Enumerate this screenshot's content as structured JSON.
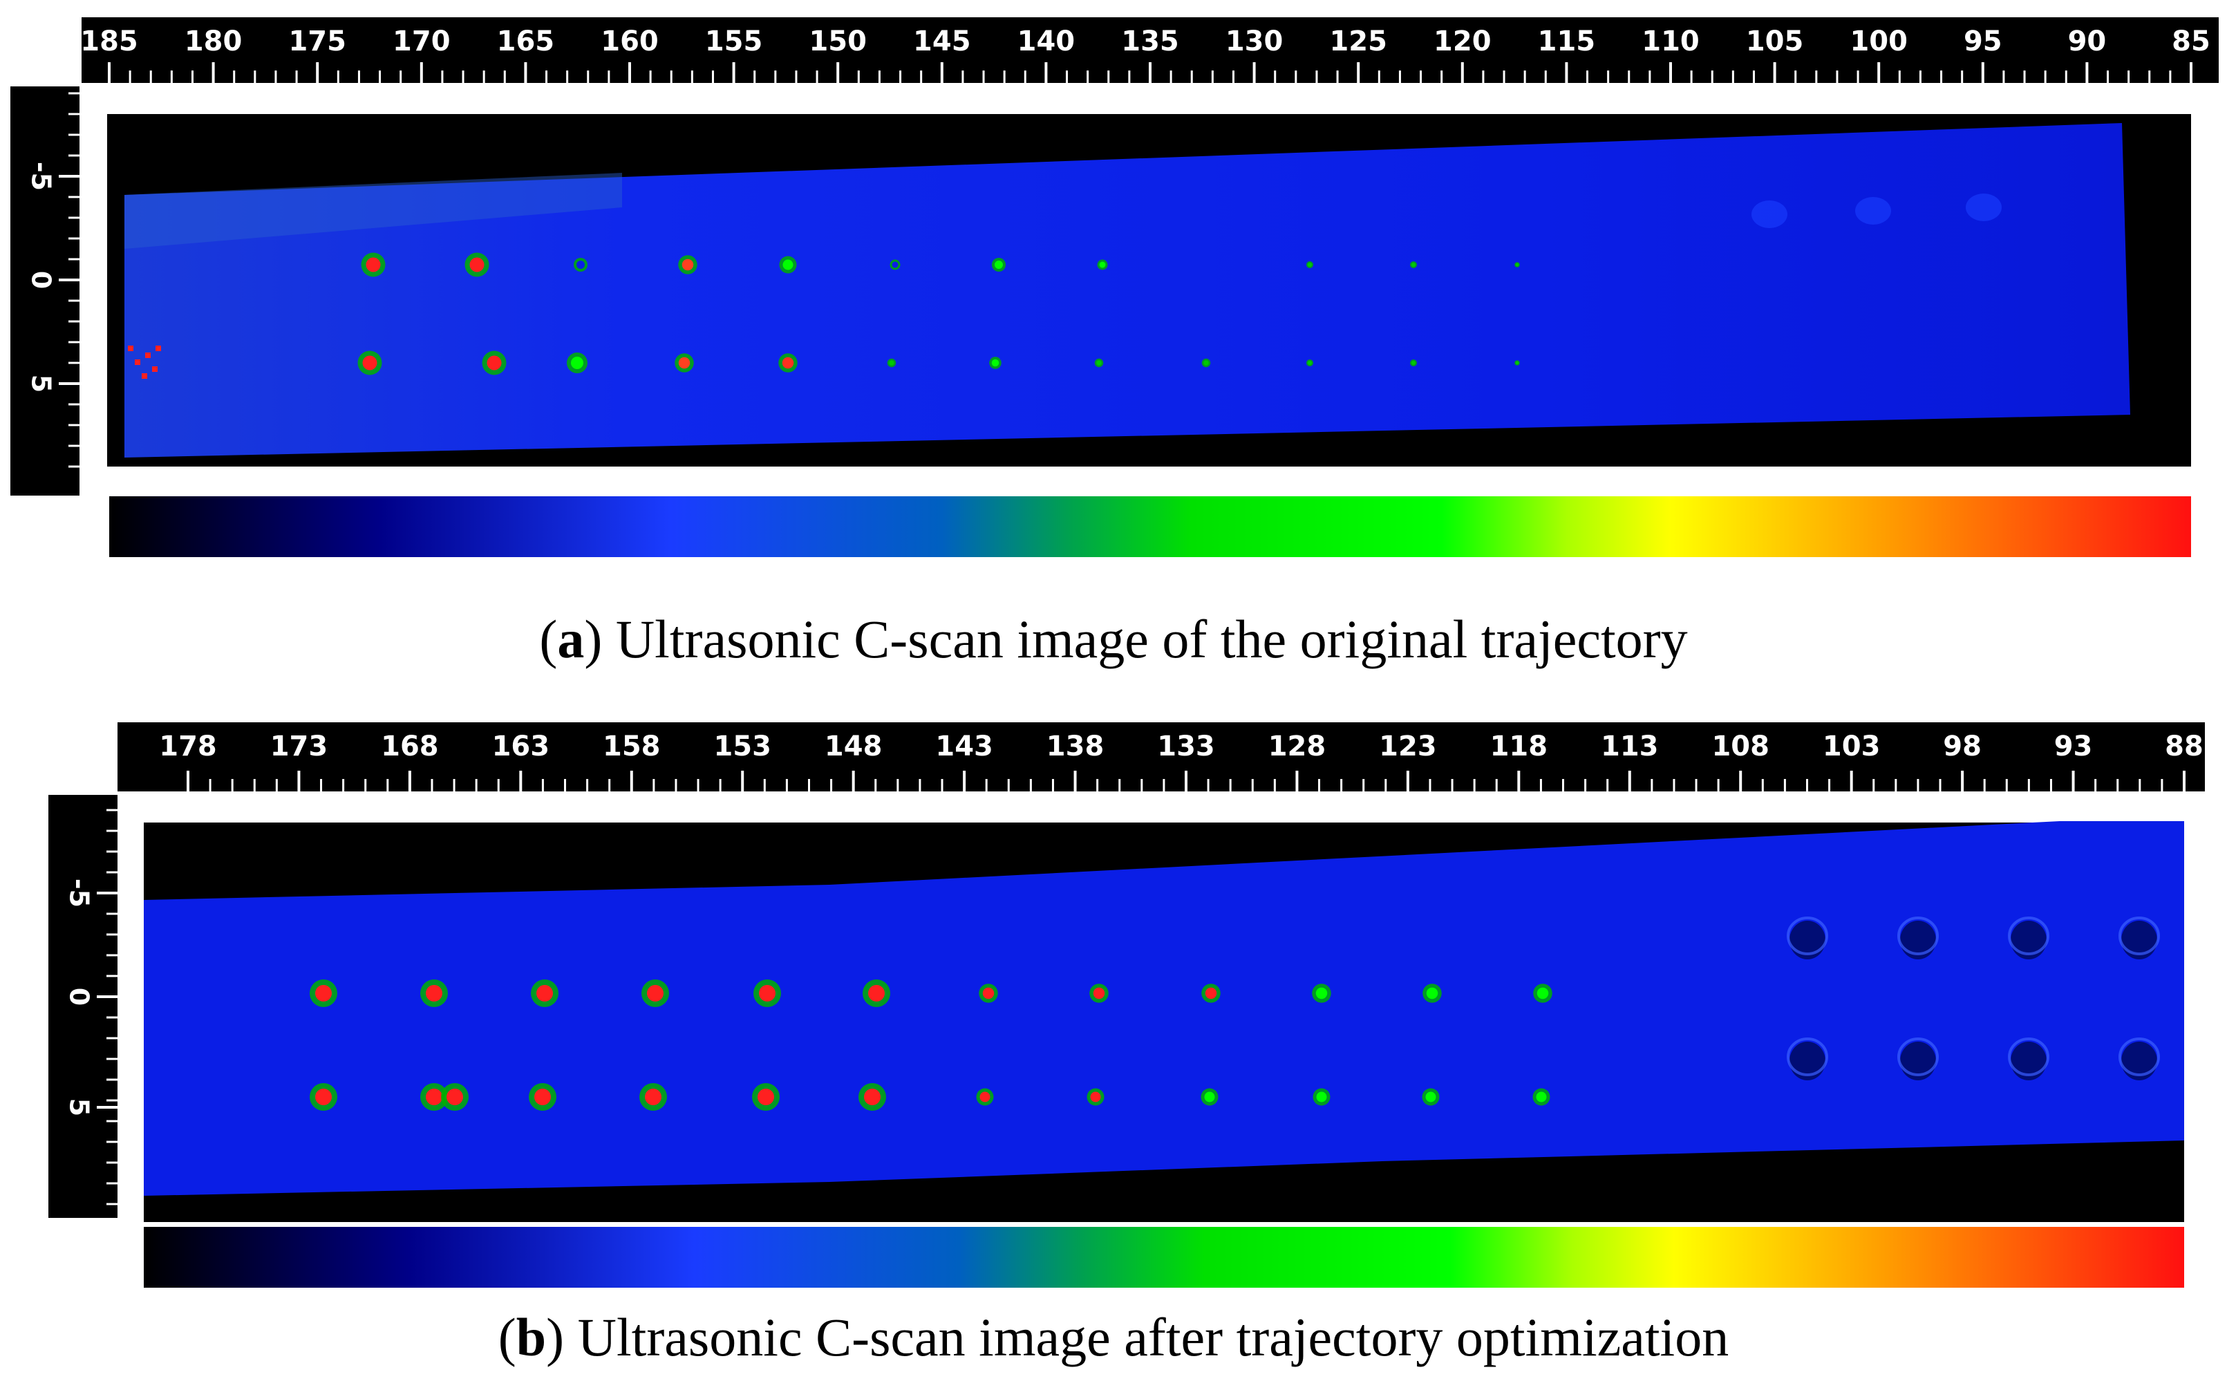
{
  "figure": {
    "panels": [
      {
        "id": "a",
        "caption_letter": "a",
        "caption_text": "Ultrasonic C-scan image of the original trajectory",
        "x_ticks": [
          "185",
          "180",
          "175",
          "170",
          "165",
          "160",
          "155",
          "150",
          "145",
          "140",
          "135",
          "130",
          "125",
          "120",
          "115",
          "110",
          "105",
          "100",
          "95",
          "90",
          "85"
        ],
        "y_ticks": [
          "-5",
          "0",
          "5"
        ]
      },
      {
        "id": "b",
        "caption_letter": "b",
        "caption_text": "Ultrasonic C-scan image after trajectory optimization",
        "x_ticks": [
          "178",
          "173",
          "168",
          "163",
          "158",
          "153",
          "148",
          "143",
          "138",
          "133",
          "128",
          "123",
          "118",
          "113",
          "108",
          "103",
          "98",
          "93",
          "88"
        ],
        "y_ticks": [
          "-5",
          "0",
          "5"
        ]
      }
    ],
    "colors": {
      "background": "#000000",
      "scan_base": "#0a1ee6",
      "ruler": "#000000",
      "ruler_text": "#ffffff",
      "colorbar_stops": [
        "#000000",
        "#0000aa",
        "#1030ff",
        "#00aa44",
        "#00ee00",
        "#00ff00",
        "#ffff00",
        "#ffa000",
        "#ff1010"
      ]
    }
  }
}
